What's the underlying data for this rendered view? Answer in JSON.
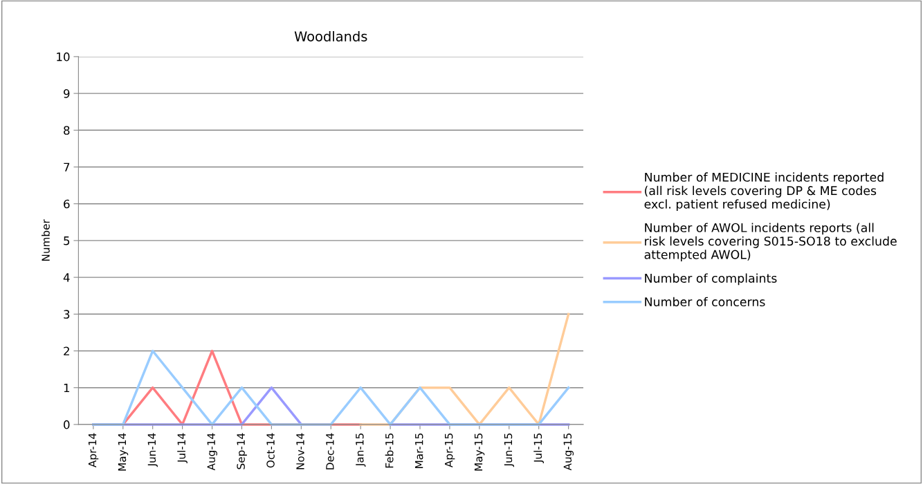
{
  "chart_data": {
    "type": "line",
    "title": "Woodlands",
    "ylabel": "Number",
    "categories": [
      "Apr-14",
      "May-14",
      "Jun-14",
      "Jul-14",
      "Aug-14",
      "Sep-14",
      "Oct-14",
      "Nov-14",
      "Dec-14",
      "Jan-15",
      "Feb-15",
      "Mar-15",
      "Apr-15",
      "May-15",
      "Jun-15",
      "Jul-15",
      "Aug-15"
    ],
    "series": [
      {
        "name": "Number of MEDICINE incidents reported\n(all risk levels covering DP & ME codes\nexcl. patient refused medicine)",
        "color": "#ff7c80",
        "values": [
          0,
          0,
          1,
          0,
          2,
          0,
          0,
          0,
          0,
          0,
          null,
          null,
          null,
          null,
          null,
          null,
          null
        ]
      },
      {
        "name": "Number of AWOL incidents reports (all\nrisk levels covering S015-SO18 to exclude\nattempted AWOL)",
        "color": "#ffcc99",
        "values": [
          null,
          null,
          null,
          null,
          null,
          null,
          null,
          null,
          null,
          0,
          0,
          1,
          1,
          0,
          1,
          0,
          3
        ]
      },
      {
        "name": "Number of complaints",
        "color": "#9999ff",
        "values": [
          0,
          0,
          0,
          0,
          0,
          0,
          1,
          0,
          null,
          null,
          0,
          0,
          0,
          0,
          0,
          0,
          0
        ]
      },
      {
        "name": "Number of concerns",
        "color": "#99ccff",
        "values": [
          0,
          0,
          2,
          1,
          0,
          1,
          0,
          0,
          0,
          1,
          0,
          1,
          0,
          0,
          0,
          0,
          1
        ]
      }
    ],
    "ylim": [
      0,
      10
    ],
    "yticks": [
      0,
      1,
      2,
      3,
      4,
      5,
      6,
      7,
      8,
      9,
      10
    ],
    "grid": "y",
    "legend": "right",
    "marker": "none",
    "line_style": "solid"
  }
}
